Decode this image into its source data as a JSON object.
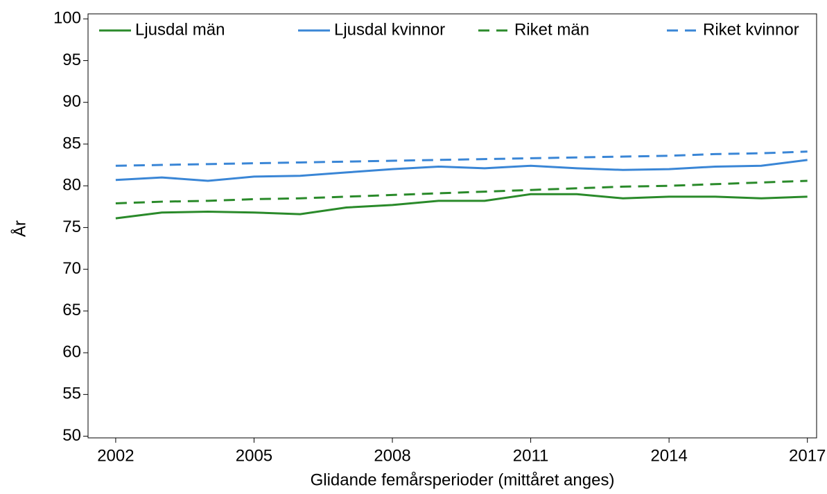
{
  "chart_data": {
    "type": "line",
    "x_label": "Glidande femårsperioder (mittåret anges)",
    "y_label": "År",
    "x": [
      2002,
      2003,
      2004,
      2005,
      2006,
      2007,
      2008,
      2009,
      2010,
      2011,
      2012,
      2013,
      2014,
      2015,
      2016,
      2017
    ],
    "series": [
      {
        "name": "Ljusdal män",
        "color": "#2a8a2a",
        "dash": false,
        "values": [
          76.1,
          76.8,
          76.9,
          76.8,
          76.6,
          77.4,
          77.7,
          78.2,
          78.2,
          79.0,
          79.0,
          78.5,
          78.7,
          78.7,
          78.5,
          78.7
        ]
      },
      {
        "name": "Ljusdal kvinnor",
        "color": "#3a86d6",
        "dash": false,
        "values": [
          80.7,
          81.0,
          80.6,
          81.1,
          81.2,
          81.6,
          82.0,
          82.3,
          82.1,
          82.4,
          82.1,
          81.9,
          82.0,
          82.3,
          82.4,
          83.1
        ]
      },
      {
        "name": "Riket män",
        "color": "#2a8a2a",
        "dash": true,
        "values": [
          77.9,
          78.1,
          78.2,
          78.4,
          78.5,
          78.7,
          78.9,
          79.1,
          79.3,
          79.5,
          79.7,
          79.9,
          80.0,
          80.2,
          80.4,
          80.6
        ]
      },
      {
        "name": "Riket kvinnor",
        "color": "#3a86d6",
        "dash": true,
        "values": [
          82.4,
          82.5,
          82.6,
          82.7,
          82.8,
          82.9,
          83.0,
          83.1,
          83.2,
          83.3,
          83.4,
          83.5,
          83.6,
          83.8,
          83.9,
          84.1
        ]
      }
    ],
    "xlim": [
      2001.4,
      2017.2
    ],
    "xticks": [
      2002,
      2005,
      2008,
      2011,
      2014,
      2017
    ],
    "ylim": [
      49.8,
      100.6
    ],
    "yticks": [
      50,
      55,
      60,
      65,
      70,
      75,
      80,
      85,
      90,
      95,
      100
    ],
    "legend": "top"
  }
}
